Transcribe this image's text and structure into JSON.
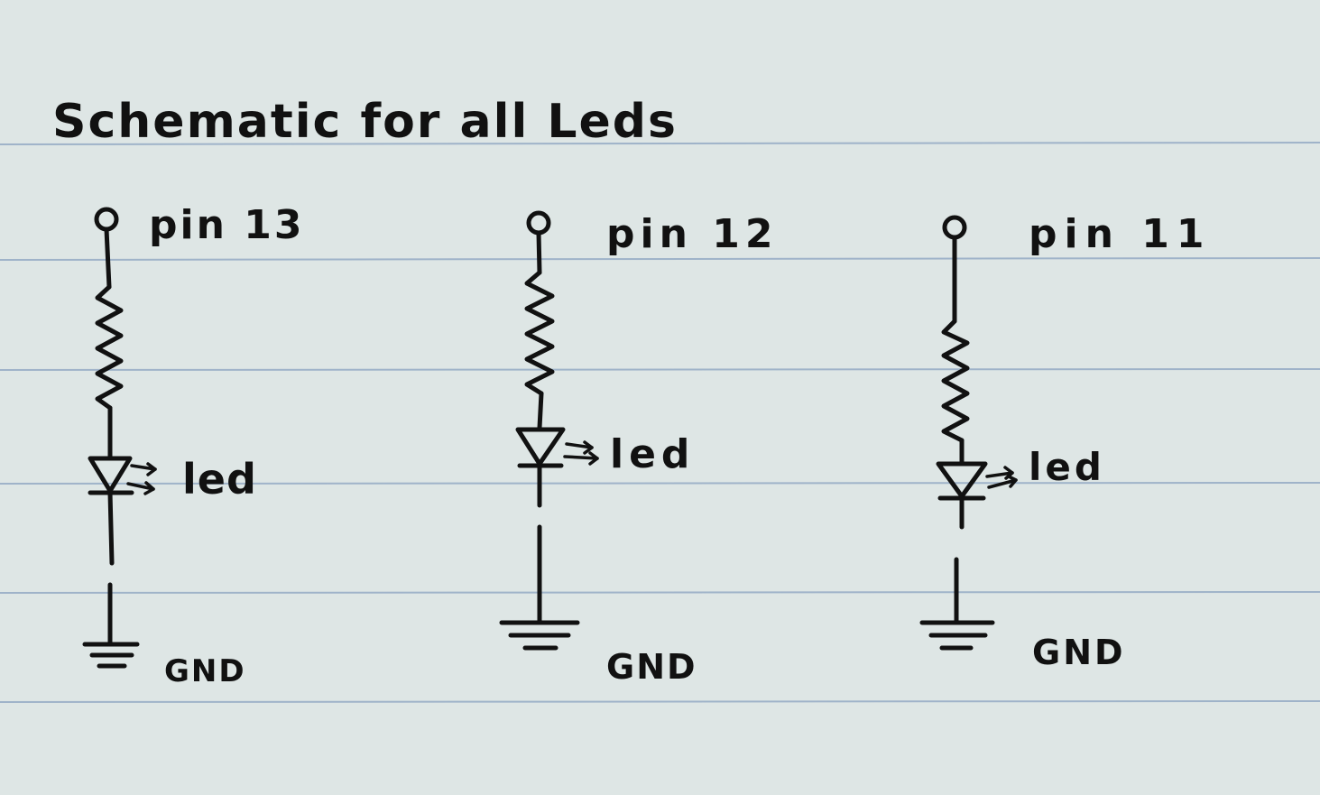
{
  "title": "Schematic for all Leds",
  "circuits": [
    {
      "pin_label": "pin 13",
      "led_label": "led",
      "ground_label": "GND"
    },
    {
      "pin_label": "pin 12",
      "led_label": "led",
      "ground_label": "GND"
    },
    {
      "pin_label": "pin 11",
      "led_label": "led",
      "ground_label": "GND"
    }
  ],
  "colors": {
    "paper": "#e4ebe9",
    "ruled_line": "#9fb3c9",
    "ink": "#111111"
  }
}
